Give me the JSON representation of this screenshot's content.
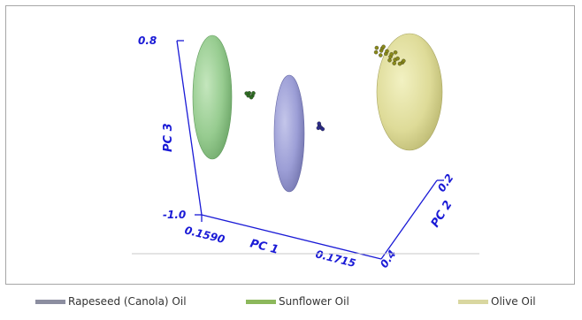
{
  "chart_data": {
    "type": "scatter",
    "title": "",
    "projection": "3d",
    "axes": {
      "x": {
        "label": "PC 1",
        "tick_labels": [
          "0.1590",
          "0.1715"
        ]
      },
      "y": {
        "label": "PC 2",
        "tick_labels": [
          "0.4",
          "0.2"
        ]
      },
      "z": {
        "label": "PC 3",
        "tick_labels": [
          "-1.0",
          "0.8"
        ]
      }
    },
    "legend_position": "bottom",
    "series": [
      {
        "name": "Rapeseed (Canola) Oil",
        "color": "#8c8ea0",
        "ellipse_color": "#9fa0d6",
        "point_color": "#2b2b8a",
        "points": [
          [
            0.1672,
            0.35,
            0.02
          ],
          [
            0.1673,
            0.35,
            0.0
          ],
          [
            0.1671,
            0.35,
            -0.01
          ],
          [
            0.1674,
            0.35,
            -0.01
          ],
          [
            0.1672,
            0.35,
            0.04
          ]
        ]
      },
      {
        "name": "Sunflower Oil",
        "color": "#8cb85c",
        "ellipse_color": "#9fd19a",
        "point_color": "#2f6e22",
        "points": [
          [
            0.1632,
            0.38,
            0.33
          ],
          [
            0.1634,
            0.38,
            0.31
          ],
          [
            0.1631,
            0.38,
            0.3
          ],
          [
            0.1635,
            0.38,
            0.34
          ],
          [
            0.1633,
            0.38,
            0.29
          ],
          [
            0.163,
            0.38,
            0.32
          ]
        ]
      },
      {
        "name": "Olive Oil",
        "color": "#d9d7a0",
        "ellipse_color": "#dedc96",
        "point_color": "#8a8a1a",
        "points": [
          [
            0.169,
            0.22,
            0.36
          ],
          [
            0.1693,
            0.22,
            0.34
          ],
          [
            0.1696,
            0.22,
            0.32
          ],
          [
            0.1699,
            0.22,
            0.3
          ],
          [
            0.1702,
            0.22,
            0.28
          ],
          [
            0.1694,
            0.22,
            0.37
          ],
          [
            0.1697,
            0.22,
            0.35
          ],
          [
            0.17,
            0.22,
            0.33
          ],
          [
            0.1704,
            0.22,
            0.3
          ],
          [
            0.1707,
            0.22,
            0.27
          ],
          [
            0.1689,
            0.22,
            0.31
          ],
          [
            0.1692,
            0.22,
            0.29
          ],
          [
            0.1698,
            0.22,
            0.26
          ],
          [
            0.1701,
            0.22,
            0.24
          ],
          [
            0.1705,
            0.22,
            0.25
          ],
          [
            0.1695,
            0.22,
            0.39
          ],
          [
            0.1708,
            0.22,
            0.29
          ],
          [
            0.1703,
            0.22,
            0.36
          ]
        ]
      }
    ]
  }
}
